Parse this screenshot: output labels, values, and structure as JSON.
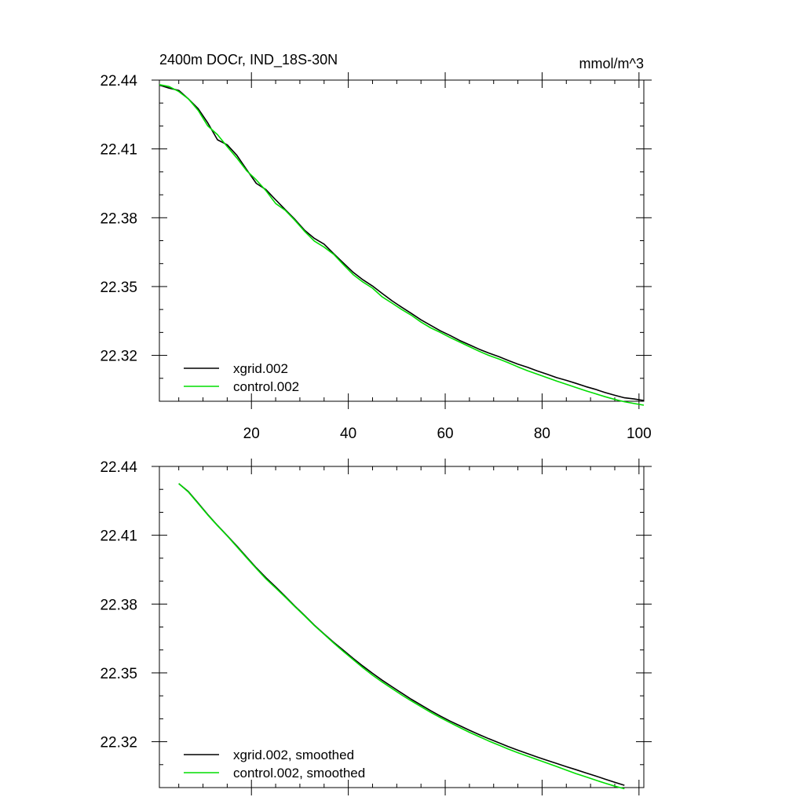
{
  "chart_data": [
    {
      "type": "line",
      "title": "2400m DOCr, IND_18S-30N",
      "units": "mmol/m^3",
      "xlabel": "",
      "ylabel": "",
      "xlim": [
        1,
        101
      ],
      "ylim": [
        22.3,
        22.44
      ],
      "x_ticks": [
        20,
        40,
        60,
        80,
        100
      ],
      "y_ticks": [
        22.32,
        22.35,
        22.38,
        22.41,
        22.44
      ],
      "grid": false,
      "legend_position": "bottom-left",
      "series": [
        {
          "name": "xgrid.002",
          "color": "#000000",
          "x": [
            1,
            3,
            5,
            7,
            9,
            11,
            13,
            15,
            17,
            19,
            21,
            23,
            25,
            27,
            29,
            31,
            33,
            35,
            37,
            39,
            41,
            43,
            45,
            47,
            49,
            51,
            53,
            55,
            57,
            59,
            61,
            63,
            65,
            67,
            69,
            71,
            73,
            75,
            77,
            79,
            81,
            83,
            85,
            87,
            89,
            91,
            93,
            95,
            97,
            99,
            101
          ],
          "values": [
            22.4378,
            22.4365,
            22.4355,
            22.4318,
            22.4275,
            22.4213,
            22.414,
            22.4118,
            22.4072,
            22.401,
            22.395,
            22.3923,
            22.3878,
            22.3835,
            22.3792,
            22.3745,
            22.371,
            22.3685,
            22.3643,
            22.3602,
            22.3562,
            22.353,
            22.3502,
            22.347,
            22.3438,
            22.341,
            22.3383,
            22.3355,
            22.3331,
            22.3307,
            22.3287,
            22.3265,
            22.3246,
            22.3227,
            22.321,
            22.3195,
            22.3178,
            22.3162,
            22.3148,
            22.3132,
            22.3118,
            22.3103,
            22.3091,
            22.3078,
            22.3064,
            22.3052,
            22.3038,
            22.3026,
            22.3015,
            22.301,
            22.3003
          ]
        },
        {
          "name": "control.002",
          "color": "#00dd00",
          "x": [
            1,
            3,
            5,
            7,
            9,
            11,
            13,
            15,
            17,
            19,
            21,
            23,
            25,
            27,
            29,
            31,
            33,
            35,
            37,
            39,
            41,
            43,
            45,
            47,
            49,
            51,
            53,
            55,
            57,
            59,
            61,
            63,
            65,
            67,
            69,
            71,
            73,
            75,
            77,
            79,
            81,
            83,
            85,
            87,
            89,
            91,
            93,
            95,
            97,
            99,
            101
          ],
          "values": [
            22.438,
            22.4372,
            22.435,
            22.4318,
            22.4268,
            22.42,
            22.4162,
            22.411,
            22.406,
            22.4005,
            22.3965,
            22.3918,
            22.3862,
            22.3832,
            22.3788,
            22.374,
            22.3698,
            22.3672,
            22.364,
            22.3595,
            22.3552,
            22.352,
            22.3493,
            22.3455,
            22.3428,
            22.34,
            22.3375,
            22.3345,
            22.332,
            22.33,
            22.3278,
            22.3258,
            22.3238,
            22.3218,
            22.32,
            22.3185,
            22.3168,
            22.315,
            22.3133,
            22.3118,
            22.3103,
            22.3088,
            22.3074,
            22.306,
            22.3046,
            22.3033,
            22.302,
            22.3008,
            22.2998,
            22.299,
            22.2983
          ]
        }
      ]
    },
    {
      "type": "line",
      "title": "",
      "xlabel": "",
      "ylabel": "",
      "xlim": [
        1,
        101
      ],
      "ylim": [
        22.3,
        22.44
      ],
      "x_ticks": [
        20,
        40,
        60,
        80,
        100
      ],
      "y_ticks": [
        22.32,
        22.35,
        22.38,
        22.41,
        22.44
      ],
      "grid": false,
      "legend_position": "bottom-left",
      "series": [
        {
          "name": "xgrid.002, smoothed",
          "color": "#000000",
          "x": [
            5,
            7,
            9,
            11,
            13,
            15,
            17,
            19,
            21,
            23,
            25,
            27,
            29,
            31,
            33,
            35,
            37,
            39,
            41,
            43,
            45,
            47,
            49,
            51,
            53,
            55,
            57,
            59,
            61,
            63,
            65,
            67,
            69,
            71,
            73,
            75,
            77,
            79,
            81,
            83,
            85,
            87,
            89,
            91,
            93,
            95,
            97
          ],
          "values": [
            22.4325,
            22.429,
            22.424,
            22.419,
            22.4143,
            22.4098,
            22.4053,
            22.4005,
            22.3958,
            22.3915,
            22.3875,
            22.3833,
            22.379,
            22.375,
            22.3708,
            22.367,
            22.3633,
            22.3598,
            22.3563,
            22.353,
            22.3498,
            22.3468,
            22.344,
            22.3412,
            22.3385,
            22.336,
            22.3335,
            22.3312,
            22.329,
            22.327,
            22.325,
            22.3231,
            22.3213,
            22.3196,
            22.3179,
            22.3163,
            22.3148,
            22.3133,
            22.3119,
            22.3105,
            22.3091,
            22.3078,
            22.3064,
            22.3051,
            22.3037,
            22.3023,
            22.301
          ]
        },
        {
          "name": "control.002, smoothed",
          "color": "#00dd00",
          "x": [
            5,
            7,
            9,
            11,
            13,
            15,
            17,
            19,
            21,
            23,
            25,
            27,
            29,
            31,
            33,
            35,
            37,
            39,
            41,
            43,
            45,
            47,
            49,
            51,
            53,
            55,
            57,
            59,
            61,
            63,
            65,
            67,
            69,
            71,
            73,
            75,
            77,
            79,
            81,
            83,
            85,
            87,
            89,
            91,
            93,
            95,
            97
          ],
          "values": [
            22.4325,
            22.4288,
            22.4238,
            22.4188,
            22.4142,
            22.4097,
            22.405,
            22.4002,
            22.3955,
            22.391,
            22.387,
            22.383,
            22.3788,
            22.3748,
            22.3706,
            22.3668,
            22.363,
            22.3593,
            22.3558,
            22.3523,
            22.349,
            22.346,
            22.3432,
            22.3404,
            22.3378,
            22.3353,
            22.3328,
            22.3305,
            22.3283,
            22.3262,
            22.3241,
            22.3222,
            22.3203,
            22.3186,
            22.3168,
            22.3152,
            22.3137,
            22.3122,
            22.3107,
            22.3092,
            22.3076,
            22.3061,
            22.3047,
            22.3033,
            22.3019,
            22.3006,
            22.2995
          ]
        }
      ]
    }
  ]
}
